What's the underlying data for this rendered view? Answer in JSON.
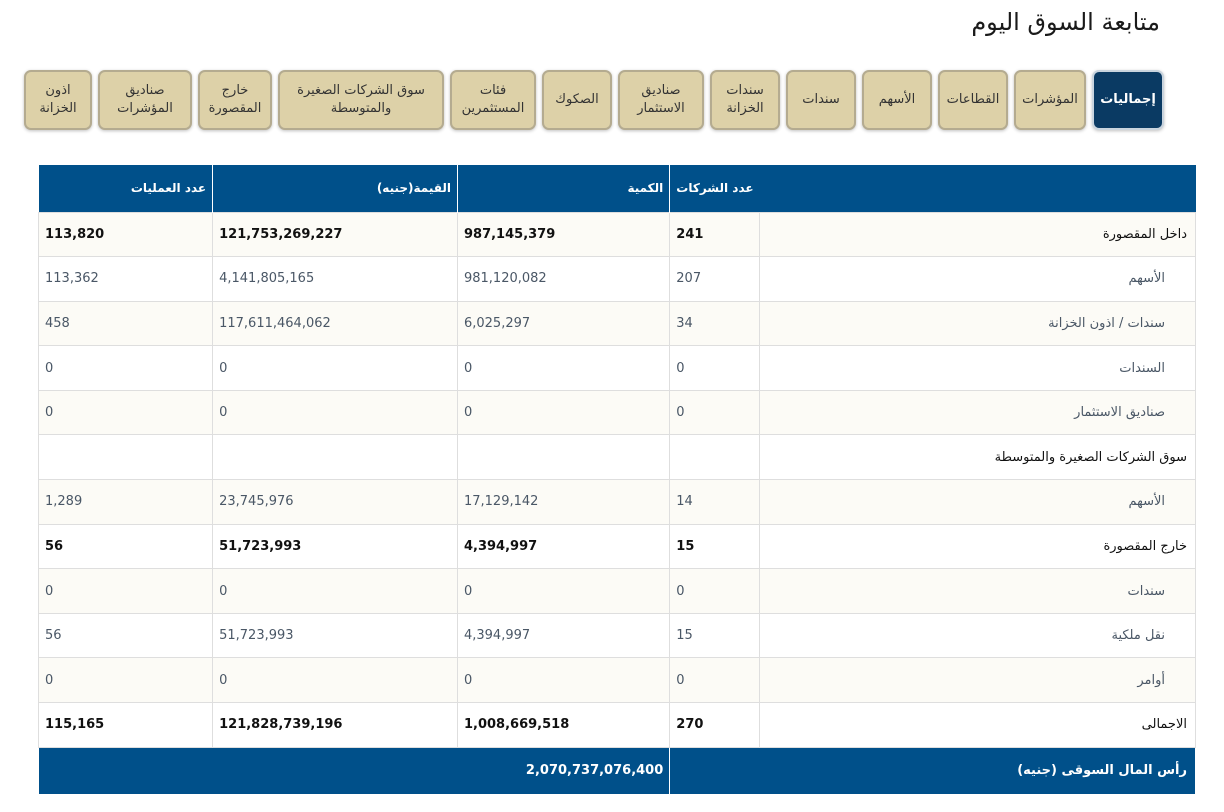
{
  "title": "متابعة السوق اليوم",
  "tabs": [
    "إجماليات",
    "المؤشرات",
    "القطاعات",
    "الأسهم",
    "سندات",
    "سندات الخزانة",
    "صناديق الاستثمار",
    "الصكوك",
    "فئات المستثمرين",
    "سوق الشركات الصغيرة والمتوسطة",
    "خارج المقصورة",
    "صناديق المؤشرات",
    "اذون الخزانة"
  ],
  "active_tab": "إجماليات",
  "table": {
    "headers": [
      "",
      "عدد الشركات",
      "الكمية",
      "القيمة(جنيه)",
      "عدد العمليات"
    ],
    "rows": [
      {
        "type": "main",
        "label": "داخل المقصورة",
        "companies": "241",
        "qty": "987,145,379",
        "value": "121,753,269,227",
        "ops": "113,820"
      },
      {
        "type": "sub",
        "label": "الأسهم",
        "companies": "207",
        "qty": "981,120,082",
        "value": "4,141,805,165",
        "ops": "113,362"
      },
      {
        "type": "sub",
        "label": "سندات / اذون الخزانة",
        "companies": "34",
        "qty": "6,025,297",
        "value": "117,611,464,062",
        "ops": "458"
      },
      {
        "type": "sub",
        "label": "السندات",
        "companies": "0",
        "qty": "0",
        "value": "0",
        "ops": "0"
      },
      {
        "type": "sub",
        "label": "صناديق الاستثمار",
        "companies": "0",
        "qty": "0",
        "value": "0",
        "ops": "0"
      },
      {
        "type": "sec",
        "label": "سوق الشركات الصغيرة والمتوسطة",
        "companies": "",
        "qty": "",
        "value": "",
        "ops": ""
      },
      {
        "type": "sub",
        "label": "الأسهم",
        "companies": "14",
        "qty": "17,129,142",
        "value": "23,745,976",
        "ops": "1,289"
      },
      {
        "type": "main",
        "label": "خارج المقصورة",
        "companies": "15",
        "qty": "4,394,997",
        "value": "51,723,993",
        "ops": "56"
      },
      {
        "type": "sub",
        "label": "سندات",
        "companies": "0",
        "qty": "0",
        "value": "0",
        "ops": "0"
      },
      {
        "type": "sub",
        "label": "نقل ملكية",
        "companies": "15",
        "qty": "4,394,997",
        "value": "51,723,993",
        "ops": "56"
      },
      {
        "type": "sub",
        "label": "أوامر",
        "companies": "0",
        "qty": "0",
        "value": "0",
        "ops": "0"
      },
      {
        "type": "main",
        "label": "الاجمالى",
        "companies": "270",
        "qty": "1,008,669,518",
        "value": "121,828,739,196",
        "ops": "115,165"
      }
    ],
    "footer": {
      "label": "رأس المال السوقى (جنيه)",
      "value": "2,070,737,076,400"
    }
  },
  "colors": {
    "header": "#00508a",
    "active_tab": "#0a3a63",
    "tab": "#ddd1a8"
  }
}
